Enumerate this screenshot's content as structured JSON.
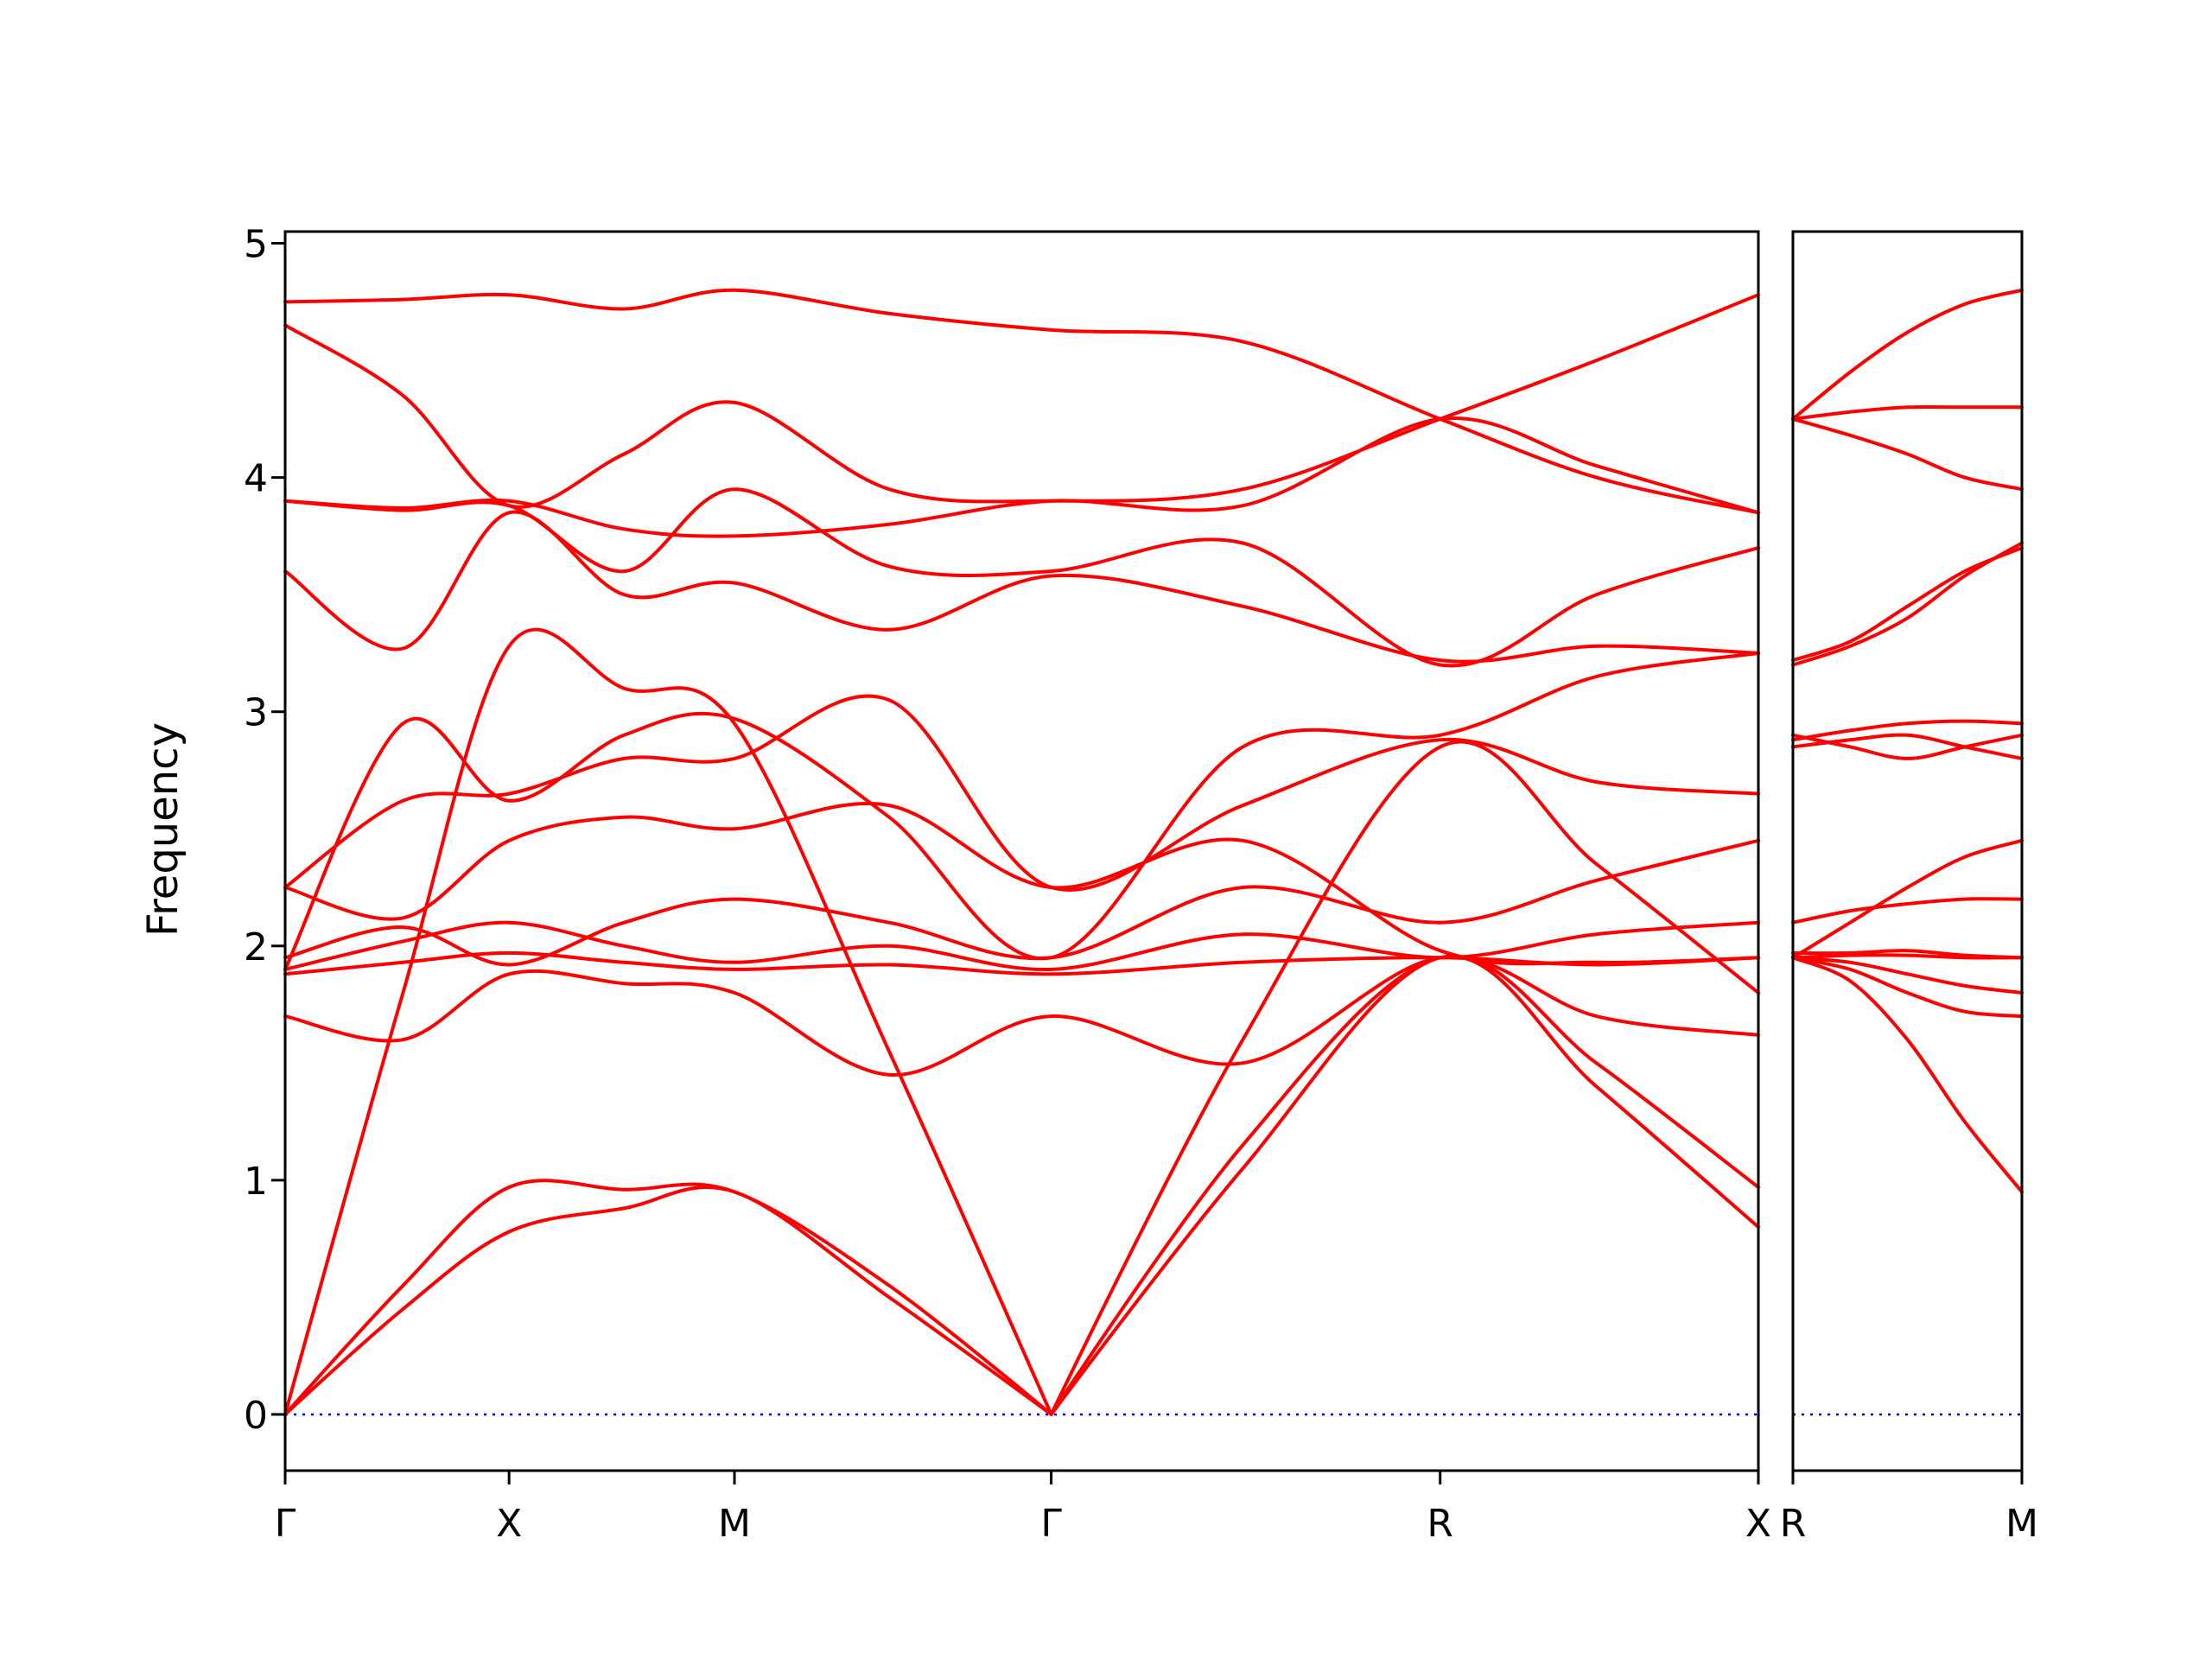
{
  "figure": {
    "background_color": "#ffffff",
    "band_color": "#ff0000",
    "zero_line_color": "#0000cd",
    "axis_color": "#000000"
  },
  "chart_data": {
    "type": "line",
    "title": "",
    "ylabel": "Frequency",
    "ylim": [
      -0.24,
      5.05
    ],
    "yticks": [
      "0",
      "1",
      "2",
      "3",
      "4",
      "5"
    ],
    "ytick_values": [
      0,
      1,
      2,
      3,
      4,
      5
    ],
    "grid": false,
    "legend": "none",
    "zero_line": 0,
    "panels": [
      {
        "name": "gamma-x-m-gamma-r-x",
        "xticklabels": [
          "Γ",
          "X",
          "M",
          "Γ",
          "R",
          "X"
        ],
        "xtickpos": [
          0,
          0.152,
          0.305,
          0.52,
          0.784,
          1.0
        ],
        "x": [
          0,
          0.08,
          0.152,
          0.23,
          0.305,
          0.41,
          0.52,
          0.65,
          0.784,
          0.89,
          1.0
        ],
        "bands": [
          [
            0.0,
            0.45,
            0.78,
            0.88,
            0.95,
            0.5,
            0.0,
            1.05,
            1.95,
            1.4,
            0.8
          ],
          [
            0.0,
            0.55,
            0.97,
            0.96,
            0.95,
            0.55,
            0.0,
            1.15,
            1.95,
            1.5,
            0.97
          ],
          [
            0.0,
            1.8,
            3.28,
            3.1,
            2.95,
            1.55,
            0.0,
            1.6,
            2.85,
            2.35,
            1.8
          ],
          [
            1.7,
            1.6,
            1.88,
            1.84,
            1.8,
            1.45,
            1.7,
            1.5,
            1.95,
            1.7,
            1.62
          ],
          [
            1.88,
            1.93,
            1.97,
            1.93,
            1.9,
            1.92,
            1.88,
            1.93,
            1.95,
            1.92,
            1.95
          ],
          [
            1.9,
            2.02,
            2.1,
            2.0,
            1.93,
            2.0,
            1.9,
            2.05,
            1.95,
            2.05,
            2.1
          ],
          [
            1.95,
            2.08,
            1.92,
            2.1,
            2.2,
            2.1,
            1.95,
            2.25,
            2.1,
            2.28,
            2.45
          ],
          [
            2.25,
            2.12,
            2.45,
            2.55,
            2.5,
            2.6,
            2.25,
            2.45,
            1.98,
            1.93,
            1.95
          ],
          [
            2.25,
            2.62,
            2.65,
            2.8,
            2.8,
            3.05,
            2.25,
            2.6,
            2.88,
            2.7,
            2.65
          ],
          [
            1.9,
            2.95,
            2.62,
            2.9,
            2.97,
            2.55,
            1.95,
            2.85,
            2.9,
            3.15,
            3.25
          ],
          [
            3.6,
            3.27,
            3.85,
            3.5,
            3.55,
            3.35,
            3.58,
            3.45,
            3.22,
            3.28,
            3.25
          ],
          [
            3.9,
            3.86,
            3.88,
            3.6,
            3.95,
            3.62,
            3.6,
            3.72,
            3.2,
            3.5,
            3.7
          ],
          [
            3.9,
            3.87,
            3.9,
            3.78,
            3.75,
            3.8,
            3.9,
            3.88,
            4.25,
            4.05,
            3.85
          ],
          [
            4.65,
            4.35,
            3.88,
            4.1,
            4.32,
            3.95,
            3.9,
            3.95,
            4.25,
            4.5,
            4.78
          ],
          [
            4.75,
            4.76,
            4.78,
            4.72,
            4.8,
            4.7,
            4.63,
            4.58,
            4.25,
            4.0,
            3.85
          ]
        ]
      },
      {
        "name": "r-m",
        "xticklabels": [
          "R",
          "M"
        ],
        "xtickpos": [
          0,
          1.0
        ],
        "x": [
          0,
          0.25,
          0.5,
          0.75,
          1.0
        ],
        "bands": [
          [
            1.95,
            1.85,
            1.6,
            1.25,
            0.95
          ],
          [
            1.95,
            1.93,
            1.88,
            1.83,
            1.8
          ],
          [
            1.95,
            1.9,
            1.8,
            1.72,
            1.7
          ],
          [
            1.95,
            1.96,
            1.96,
            1.95,
            1.95
          ],
          [
            1.97,
            1.97,
            1.98,
            1.96,
            1.95
          ],
          [
            2.1,
            2.15,
            2.18,
            2.2,
            2.2
          ],
          [
            1.95,
            2.1,
            2.25,
            2.38,
            2.45
          ],
          [
            2.85,
            2.88,
            2.9,
            2.85,
            2.8
          ],
          [
            2.88,
            2.92,
            2.95,
            2.96,
            2.95
          ],
          [
            2.9,
            2.85,
            2.8,
            2.85,
            2.9
          ],
          [
            3.22,
            3.3,
            3.45,
            3.6,
            3.7
          ],
          [
            3.2,
            3.28,
            3.4,
            3.58,
            3.72
          ],
          [
            4.25,
            4.18,
            4.1,
            4.0,
            3.95
          ],
          [
            4.25,
            4.28,
            4.3,
            4.3,
            4.3
          ],
          [
            4.25,
            4.45,
            4.62,
            4.74,
            4.8
          ]
        ]
      }
    ]
  }
}
